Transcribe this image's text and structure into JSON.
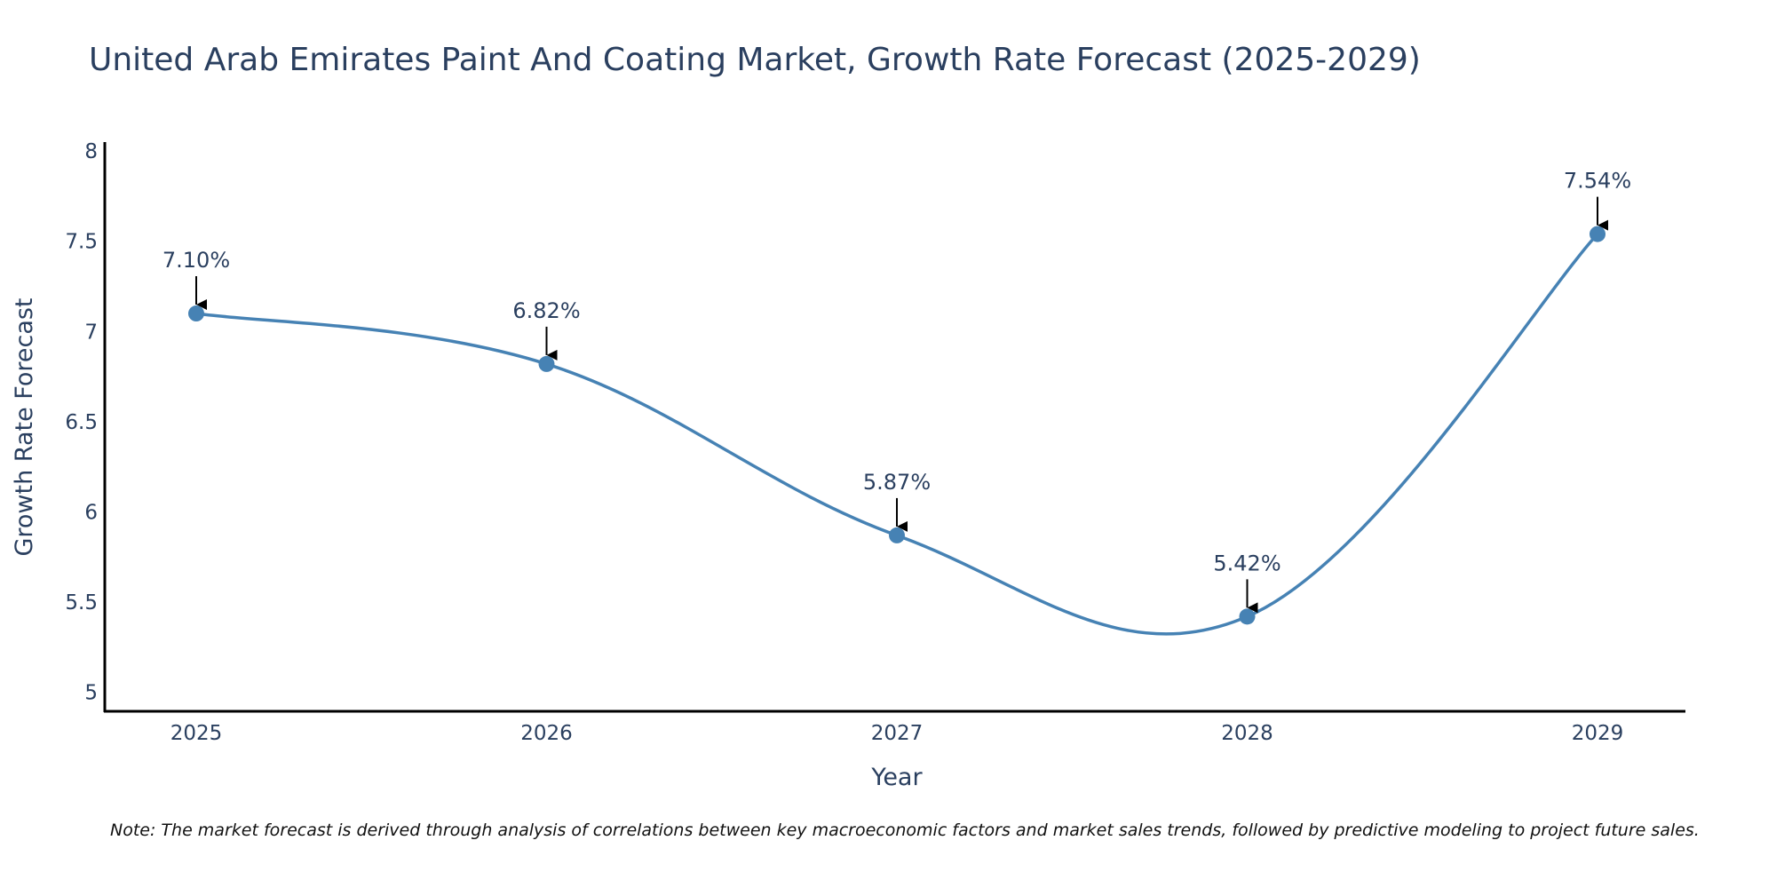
{
  "chart_data": {
    "type": "line",
    "title": "United Arab Emirates Paint And Coating Market, Growth Rate Forecast (2025-2029)",
    "xlabel": "Year",
    "ylabel": "Growth Rate Forecast",
    "categories": [
      "2025",
      "2026",
      "2027",
      "2028",
      "2029"
    ],
    "values": [
      7.1,
      6.82,
      5.87,
      5.42,
      7.54
    ],
    "data_labels": [
      "7.10%",
      "6.82%",
      "5.87%",
      "5.42%",
      "7.54%"
    ],
    "ylim": [
      4.9,
      8.05
    ],
    "yticks": [
      5,
      5.5,
      6,
      6.5,
      7,
      7.5,
      8
    ],
    "ytick_labels": [
      "5",
      "5.5",
      "6",
      "6.5",
      "7",
      "7.5",
      "8"
    ],
    "grid": false,
    "line_shape": "spline",
    "note": "Note: The market forecast is derived through analysis of correlations between key macroeconomic factors and market sales trends, followed by predictive modeling to project future sales.",
    "colors": {
      "line": "#4682b4",
      "marker": "#4682b4",
      "text": "#2a3f5f",
      "axis": "#000000",
      "arrow": "#000000"
    }
  }
}
